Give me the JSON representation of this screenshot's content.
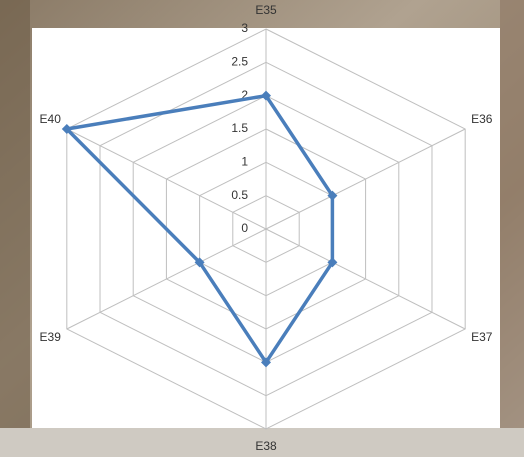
{
  "chart_data": {
    "type": "radar",
    "categories": [
      "E35",
      "E36",
      "E37",
      "E38",
      "E39",
      "E40"
    ],
    "values": [
      2,
      1,
      1,
      2,
      1,
      3
    ],
    "color": "#4a7ebb",
    "ylim": [
      0,
      3
    ],
    "yticks": [
      0,
      0.5,
      1,
      1.5,
      2,
      2.5,
      3
    ],
    "grid": true
  }
}
